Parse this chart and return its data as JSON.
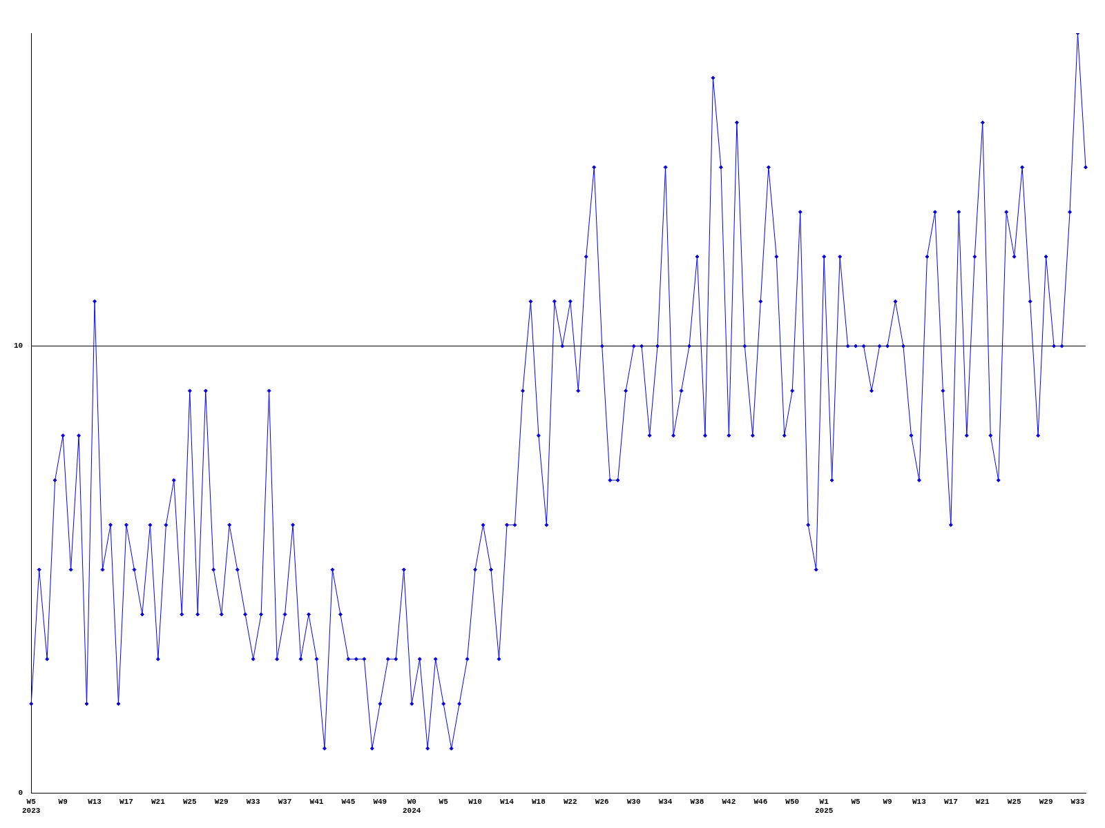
{
  "chart_data": {
    "type": "line",
    "categories": [
      "W5\n2023",
      null,
      null,
      null,
      "W9",
      null,
      null,
      null,
      "W13",
      null,
      null,
      null,
      "W17",
      null,
      null,
      null,
      "W21",
      null,
      null,
      null,
      "W25",
      null,
      null,
      null,
      "W29",
      null,
      null,
      null,
      "W33",
      null,
      null,
      null,
      "W37",
      null,
      null,
      null,
      "W41",
      null,
      null,
      null,
      "W45",
      null,
      null,
      null,
      "W49",
      null,
      null,
      null,
      "W0\n2024",
      null,
      null,
      null,
      "W5",
      null,
      null,
      null,
      "W10",
      null,
      null,
      null,
      "W14",
      null,
      null,
      null,
      "W18",
      null,
      null,
      null,
      "W22",
      null,
      null,
      null,
      "W26",
      null,
      null,
      null,
      "W30",
      null,
      null,
      null,
      "W34",
      null,
      null,
      null,
      "W38",
      null,
      null,
      null,
      "W42",
      null,
      null,
      null,
      "W46",
      null,
      null,
      null,
      "W50",
      null,
      null,
      null,
      "W1\n2025",
      null,
      null,
      null,
      "W5",
      null,
      null,
      null,
      "W9",
      null,
      null,
      null,
      "W13",
      null,
      null,
      null,
      "W17",
      null,
      null,
      null,
      "W21",
      null,
      null,
      null,
      "W25",
      null,
      null,
      null,
      "W29",
      null,
      null,
      null,
      "W33",
      null
    ],
    "series": [
      {
        "color": "#0000ff",
        "values": [
          2,
          5,
          3,
          7,
          8,
          5,
          8,
          2,
          11,
          5,
          6,
          2,
          6,
          5,
          4,
          6,
          3,
          6,
          7,
          4,
          9,
          4,
          9,
          5,
          4,
          6,
          5,
          4,
          3,
          4,
          9,
          3,
          4,
          6,
          3,
          4,
          3,
          1,
          5,
          4,
          3,
          3,
          3,
          1,
          2,
          3,
          3,
          5,
          2,
          3,
          1,
          3,
          2,
          1,
          2,
          3,
          5,
          6,
          5,
          3,
          6,
          6,
          9,
          11,
          8,
          6,
          11,
          10,
          11,
          9,
          12,
          14,
          10,
          7,
          7,
          9,
          10,
          10,
          8,
          10,
          14,
          8,
          9,
          10,
          12,
          8,
          16,
          14,
          8,
          15,
          10,
          8,
          11,
          14,
          12,
          8,
          9,
          13,
          6,
          5,
          12,
          7,
          12,
          10,
          10,
          10,
          9,
          10,
          10,
          11,
          10,
          8,
          7,
          12,
          13,
          9,
          6,
          13,
          8,
          12,
          15,
          8,
          7,
          13,
          12,
          14,
          11,
          8,
          12,
          10,
          10,
          13,
          17,
          14
        ]
      }
    ],
    "ylim": [
      0,
      17
    ],
    "yticks": [
      0,
      10
    ],
    "grid": "y",
    "legend": false,
    "marker": "diamond",
    "line_style": "solid"
  }
}
